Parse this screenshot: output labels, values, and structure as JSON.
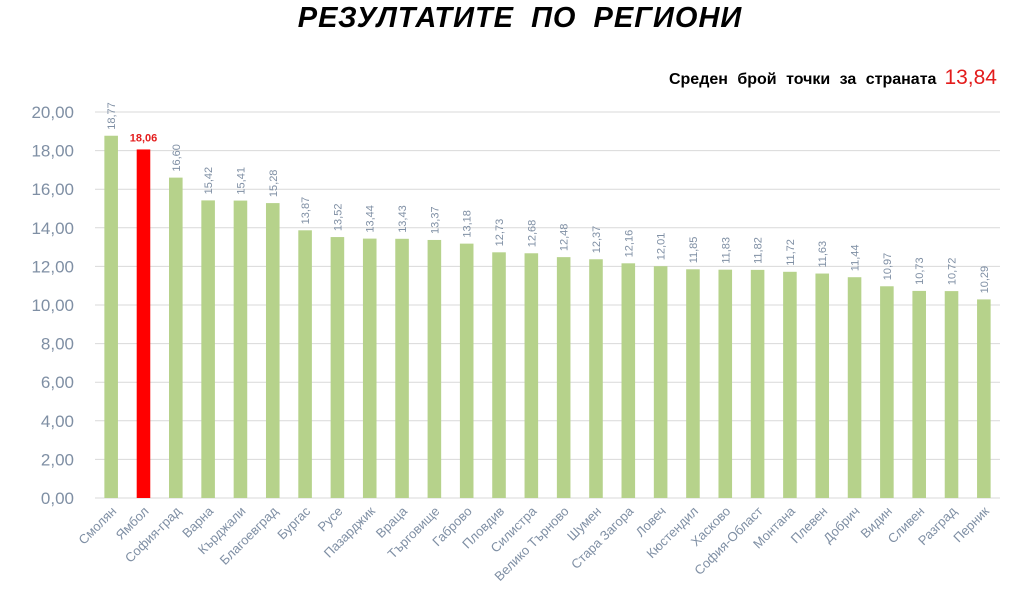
{
  "title": "РЕЗУЛТАТИТЕ ПО РЕГИОНИ",
  "average": {
    "label": "Среден брой точки за страната",
    "value": "13,84"
  },
  "colors": {
    "bar": "#b6d28b",
    "highlight": "#ff0000",
    "axis_text": "#7f8fa4",
    "grid": "#d9d9d9",
    "highlight_text": "#e31c1c"
  },
  "chart_data": {
    "type": "bar",
    "title": "РЕЗУЛТАТИТЕ ПО РЕГИОНИ",
    "xlabel": "",
    "ylabel": "",
    "ylim": [
      0,
      20
    ],
    "yticks": [
      "0,00",
      "2,00",
      "4,00",
      "6,00",
      "8,00",
      "10,00",
      "12,00",
      "14,00",
      "16,00",
      "18,00",
      "20,00"
    ],
    "grid": true,
    "highlight_index": 1,
    "categories": [
      "Смолян",
      "Ямбол",
      "София-град",
      "Варна",
      "Кърджали",
      "Благоевград",
      "Бургас",
      "Русе",
      "Пазарджик",
      "Враца",
      "Търговище",
      "Габрово",
      "Пловдив",
      "Силистра",
      "Велико Търново",
      "Шумен",
      "Стара Загора",
      "Ловеч",
      "Кюстендил",
      "Хасково",
      "София-Област",
      "Монтана",
      "Плевен",
      "Добрич",
      "Видин",
      "Сливен",
      "Разград",
      "Перник"
    ],
    "values": [
      18.77,
      18.06,
      16.6,
      15.42,
      15.41,
      15.28,
      13.87,
      13.52,
      13.44,
      13.43,
      13.37,
      13.18,
      12.73,
      12.68,
      12.48,
      12.37,
      12.16,
      12.01,
      11.85,
      11.83,
      11.82,
      11.72,
      11.63,
      11.44,
      10.97,
      10.73,
      10.72,
      10.29
    ],
    "labels": [
      "18,77",
      "18,06",
      "16,60",
      "15,42",
      "15,41",
      "15,28",
      "13,87",
      "13,52",
      "13,44",
      "13,43",
      "13,37",
      "13,18",
      "12,73",
      "12,68",
      "12,48",
      "12,37",
      "12,16",
      "12,01",
      "11,85",
      "11,83",
      "11,82",
      "11,72",
      "11,63",
      "11,44",
      "10,97",
      "10,73",
      "10,72",
      "10,29"
    ]
  }
}
